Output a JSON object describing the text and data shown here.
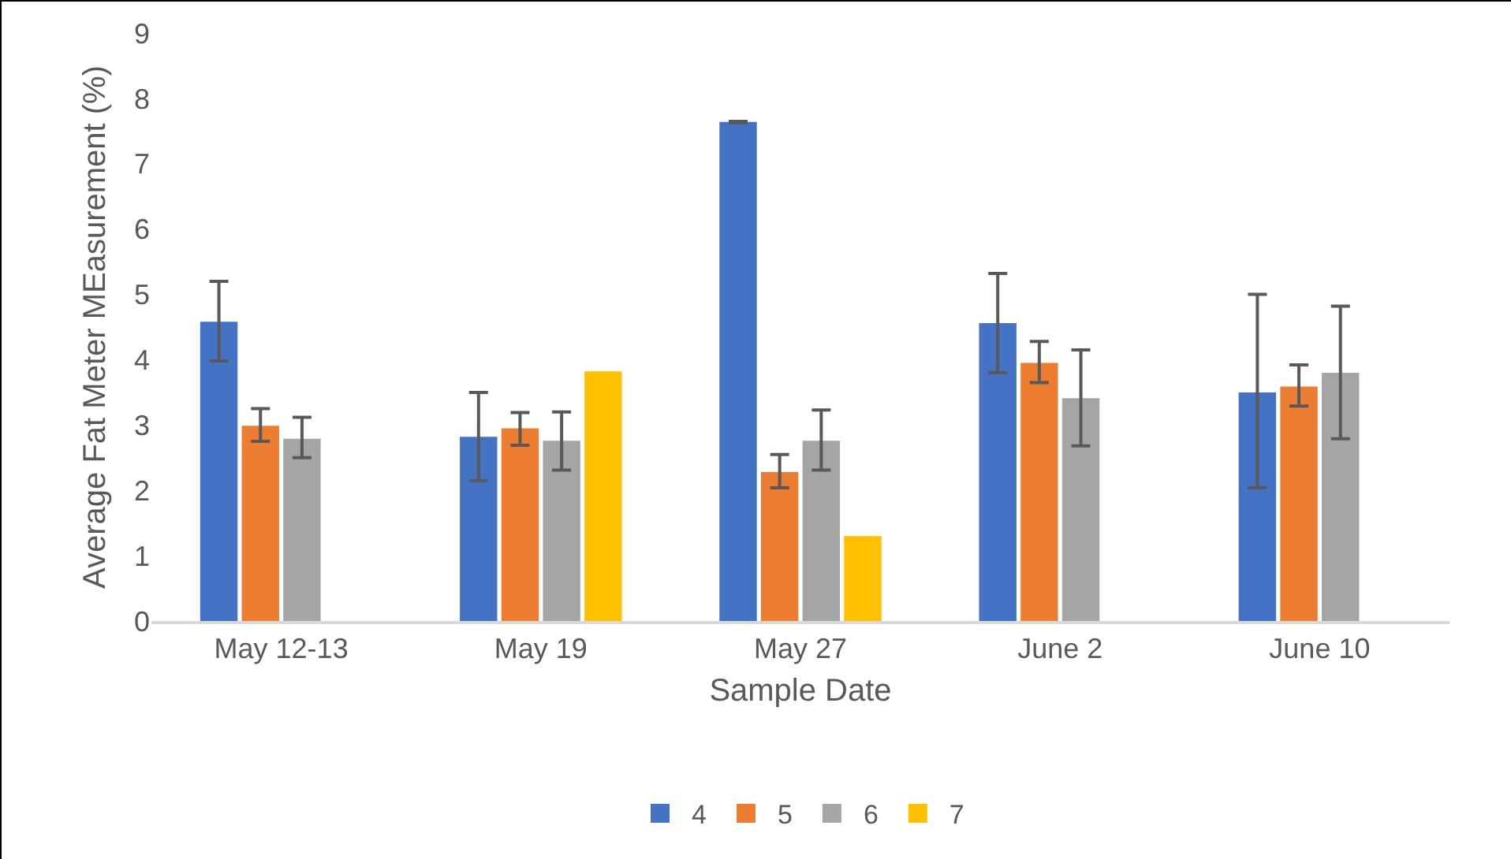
{
  "chart_data": {
    "type": "bar",
    "xlabel": "Sample Date",
    "ylabel": "Average Fat Meter MEasurement (%)",
    "categories": [
      "May 12-13",
      "May 19",
      "May 27",
      "June 2",
      "June 10"
    ],
    "series": [
      {
        "name": "4",
        "color": "#4472c4",
        "values": [
          4.58,
          2.82,
          7.64,
          4.56,
          3.5
        ],
        "errors": [
          [
            3.98,
            5.2
          ],
          [
            2.15,
            3.5
          ],
          [
            7.63,
            7.65
          ],
          [
            3.8,
            5.32
          ],
          [
            2.04,
            5.0
          ]
        ]
      },
      {
        "name": "5",
        "color": "#ed7d31",
        "values": [
          2.99,
          2.95,
          2.28,
          3.95,
          3.59
        ],
        "errors": [
          [
            2.75,
            3.25
          ],
          [
            2.69,
            3.19
          ],
          [
            2.04,
            2.55
          ],
          [
            3.65,
            4.28
          ],
          [
            3.29,
            3.92
          ]
        ]
      },
      {
        "name": "6",
        "color": "#a5a5a5",
        "values": [
          2.79,
          2.76,
          2.76,
          3.41,
          3.8
        ],
        "errors": [
          [
            2.5,
            3.12
          ],
          [
            2.31,
            3.2
          ],
          [
            2.31,
            3.23
          ],
          [
            2.68,
            4.15
          ],
          [
            2.79,
            4.82
          ]
        ]
      },
      {
        "name": "7",
        "color": "#ffc000",
        "values": [
          null,
          3.82,
          1.3,
          null,
          null
        ]
      }
    ],
    "ylim": [
      0,
      9
    ],
    "yticks": [
      0,
      1,
      2,
      3,
      4,
      5,
      6,
      7,
      8,
      9
    ],
    "grid": false,
    "legend": "bottom"
  }
}
